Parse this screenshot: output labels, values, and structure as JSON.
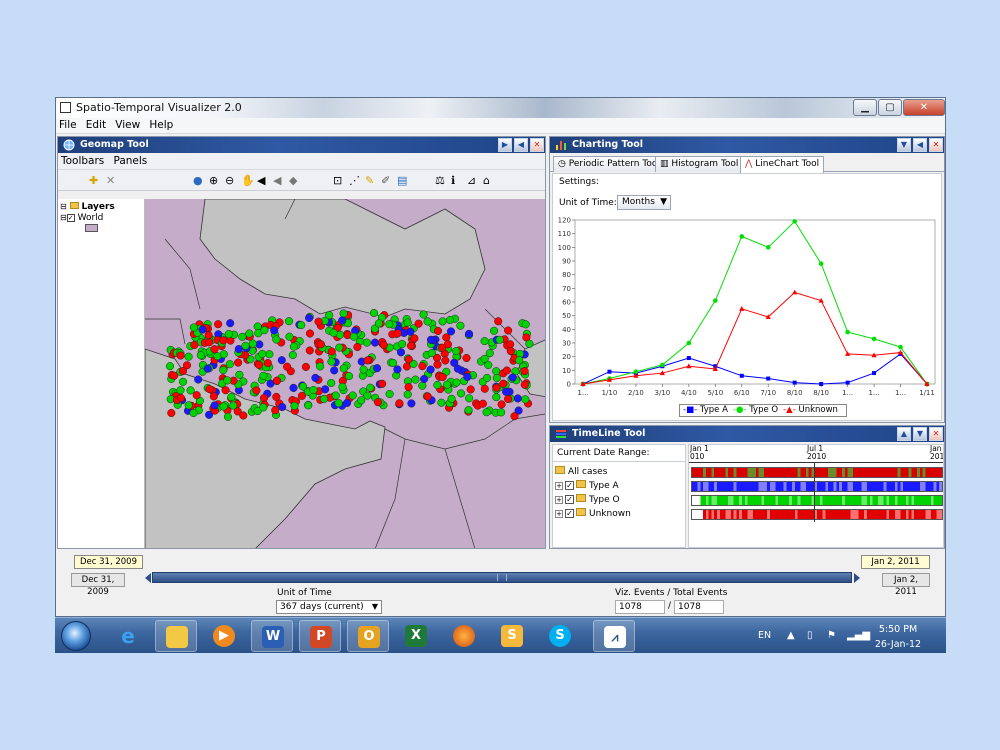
{
  "window": {
    "title": "Spatio-Temporal Visualizer 2.0"
  },
  "menu": [
    "File",
    "Edit",
    "View",
    "Help"
  ],
  "geomap": {
    "title": "Geomap Tool",
    "submenu": [
      "Toolbars",
      "Panels"
    ],
    "layers": {
      "root": "Layers",
      "world": "World"
    }
  },
  "charting": {
    "title": "Charting Tool",
    "tabs": [
      "Periodic Pattern Tool",
      "Histogram Tool",
      "LineChart Tool"
    ],
    "settings_label": "Settings:",
    "unit_label": "Unit of Time:",
    "unit_value": "Months",
    "chart_data": {
      "type": "line",
      "categories": [
        "1...",
        "1/10",
        "2/10",
        "3/10",
        "4/10",
        "5/10",
        "6/10",
        "7/10",
        "8/10",
        "8/10",
        "1...",
        "1...",
        "1...",
        "1/11"
      ],
      "yticks": [
        0,
        10,
        20,
        30,
        40,
        50,
        60,
        70,
        80,
        90,
        100,
        110,
        120
      ],
      "ylim": [
        0,
        120
      ],
      "series": [
        {
          "name": "Type A",
          "color": "#0000ff",
          "marker": "square",
          "values": [
            0,
            9,
            8,
            13,
            19,
            13,
            6,
            4,
            1,
            0,
            1,
            8,
            22,
            0
          ]
        },
        {
          "name": "Type O",
          "color": "#00e000",
          "marker": "circle",
          "values": [
            0,
            4,
            9,
            14,
            30,
            61,
            108,
            100,
            119,
            88,
            38,
            33,
            27,
            0
          ]
        },
        {
          "name": "Unknown",
          "color": "#ff0000",
          "marker": "triangle",
          "values": [
            0,
            3,
            6,
            8,
            13,
            11,
            55,
            49,
            67,
            61,
            22,
            21,
            23,
            0
          ]
        }
      ]
    }
  },
  "timeline": {
    "title": "TimeLine Tool",
    "range_label": "Current Date Range:",
    "rows": [
      {
        "label": "All cases"
      },
      {
        "label": "Type A"
      },
      {
        "label": "Type O"
      },
      {
        "label": "Unknown"
      }
    ],
    "dates": [
      {
        "top": "Jan 1",
        "bottom": "010"
      },
      {
        "top": "Jul 1",
        "bottom": "2010"
      },
      {
        "top": "Jan",
        "bottom": "201"
      }
    ]
  },
  "slider": {
    "start_top": "Dec 31, 2009",
    "end_top": "Jan 2, 2011",
    "start": "Dec 31, 2009",
    "end": "Jan 2, 2011"
  },
  "unit_of_time": {
    "label": "Unit of Time",
    "value": "367 days (current)"
  },
  "viz_events": {
    "label": "Viz. Events / Total Events",
    "visible": "1078",
    "separator": "/",
    "total": "1078"
  },
  "taskbar": {
    "lang": "EN",
    "time": "5:50 PM",
    "date": "26-Jan-12",
    "apps": [
      "ie-icon",
      "explorer-icon",
      "media-player-icon",
      "word-icon",
      "powerpoint-icon",
      "outlook-icon",
      "excel-icon",
      "firefox-icon",
      "sumatra-icon",
      "skype-icon",
      "visualizer-icon"
    ]
  }
}
